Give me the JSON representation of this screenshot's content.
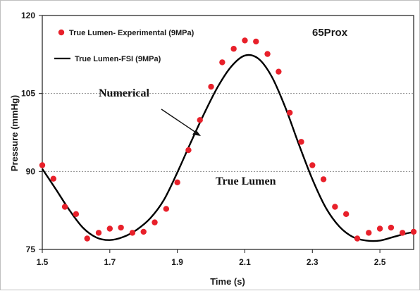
{
  "chart_data": {
    "type": "scatter",
    "panel_label": "65Prox",
    "xlabel": "Time (s)",
    "ylabel": "Pressure (mmHg)",
    "xlim": [
      1.5,
      2.6
    ],
    "ylim": [
      75,
      120
    ],
    "x_ticks": [
      "1.5",
      "1.7",
      "1.9",
      "2.1",
      "2.3",
      "2.5"
    ],
    "x_tick_values": [
      1.5,
      1.7,
      1.9,
      2.1,
      2.3,
      2.5
    ],
    "y_ticks": [
      "75",
      "90",
      "105",
      "120"
    ],
    "y_tick_values": [
      75,
      90,
      105,
      120
    ],
    "grid": "horizontal dotted at 90 and 105",
    "legend_position": "top-left",
    "series": [
      {
        "name": "True Lumen- Experimental (9MPa)",
        "style": "markers",
        "color": "#e8202a",
        "x": [
          1.5,
          1.533,
          1.567,
          1.6,
          1.633,
          1.667,
          1.7,
          1.733,
          1.767,
          1.8,
          1.833,
          1.867,
          1.9,
          1.933,
          1.967,
          2.0,
          2.033,
          2.067,
          2.1,
          2.133,
          2.167,
          2.2,
          2.233,
          2.267,
          2.3,
          2.333,
          2.367,
          2.4,
          2.433,
          2.467,
          2.5,
          2.533,
          2.567,
          2.6
        ],
        "y": [
          91.2,
          88.6,
          83.2,
          81.8,
          77.1,
          78.2,
          79.0,
          79.2,
          78.2,
          78.4,
          80.2,
          82.8,
          87.9,
          94.1,
          99.9,
          106.3,
          111.0,
          113.6,
          115.2,
          115.0,
          112.6,
          109.2,
          101.3,
          95.7,
          91.2,
          88.5,
          83.2,
          81.8,
          77.1,
          78.2,
          79.0,
          79.2,
          78.2,
          78.4
        ]
      },
      {
        "name": "True Lumen-FSI (9MPa)",
        "style": "line",
        "color": "#000000",
        "x": [
          1.5,
          1.54,
          1.58,
          1.62,
          1.66,
          1.7,
          1.74,
          1.78,
          1.82,
          1.86,
          1.9,
          1.94,
          1.98,
          2.02,
          2.06,
          2.1,
          2.14,
          2.18,
          2.22,
          2.26,
          2.3,
          2.34,
          2.38,
          2.42,
          2.46,
          2.5,
          2.54,
          2.58,
          2.6
        ],
        "y": [
          90.5,
          86.6,
          82.6,
          79.2,
          77.3,
          76.8,
          77.4,
          78.8,
          81.0,
          84.5,
          89.8,
          95.6,
          101.2,
          106.3,
          110.2,
          112.3,
          111.7,
          108.2,
          102.3,
          95.2,
          88.5,
          83.0,
          79.4,
          77.4,
          76.7,
          76.7,
          77.4,
          78.1,
          78.3
        ]
      }
    ],
    "annotations": [
      "Numerical",
      "True Lumen"
    ]
  }
}
